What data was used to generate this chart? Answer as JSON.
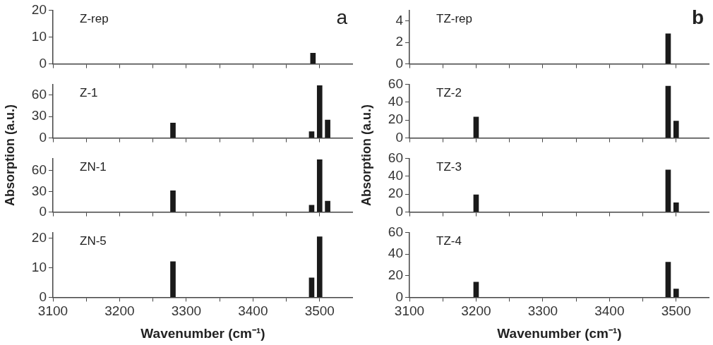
{
  "chart_data": [
    {
      "type": "bar",
      "title": "Z-rep",
      "annotations": [
        "a"
      ],
      "ylabel": "Absorption (a.u.)",
      "x": [
        3490
      ],
      "values": [
        4
      ],
      "color": "#1a1a1a",
      "xlim": [
        3100,
        3550
      ],
      "xticks": [
        3100,
        {
          "value": 3150,
          "label": null
        },
        3200,
        {
          "value": 3250,
          "label": null
        },
        3300,
        {
          "value": 3350,
          "label": null
        },
        3400,
        {
          "value": 3450,
          "label": null
        },
        3500
      ],
      "ylim": [
        0,
        20
      ],
      "yticks": [
        0,
        10,
        20
      ],
      "tick_labels": "y",
      "grid": false,
      "legend": false
    },
    {
      "type": "bar",
      "title": "Z-1",
      "x": [
        3280,
        3488,
        3500,
        3512
      ],
      "values": [
        21,
        9,
        73,
        25
      ],
      "color": "#1a1a1a",
      "xlim": [
        3100,
        3550
      ],
      "xticks": [
        3100,
        {
          "value": 3150,
          "label": null
        },
        3200,
        {
          "value": 3250,
          "label": null
        },
        3300,
        {
          "value": 3350,
          "label": null
        },
        3400,
        {
          "value": 3450,
          "label": null
        },
        3500
      ],
      "ylim": [
        0,
        75
      ],
      "yticks": [
        0,
        30,
        60
      ],
      "tick_labels": "y",
      "grid": false,
      "legend": false
    },
    {
      "type": "bar",
      "title": "ZN-1",
      "x": [
        3280,
        3488,
        3500,
        3512
      ],
      "values": [
        31,
        10,
        76,
        16
      ],
      "color": "#1a1a1a",
      "xlim": [
        3100,
        3550
      ],
      "xticks": [
        3100,
        {
          "value": 3150,
          "label": null
        },
        3200,
        {
          "value": 3250,
          "label": null
        },
        3300,
        {
          "value": 3350,
          "label": null
        },
        3400,
        {
          "value": 3450,
          "label": null
        },
        3500
      ],
      "ylim": [
        0,
        78
      ],
      "yticks": [
        0,
        30,
        60
      ],
      "tick_labels": "y",
      "grid": false,
      "legend": false
    },
    {
      "type": "bar",
      "title": "ZN-5",
      "xlabel": "Wavenumber (cm⁻¹)",
      "x": [
        3280,
        3488,
        3500
      ],
      "values": [
        12.1,
        6.6,
        20.5
      ],
      "color": "#1a1a1a",
      "xlim": [
        3100,
        3550
      ],
      "xticks": [
        3100,
        {
          "value": 3150,
          "label": null
        },
        3200,
        {
          "value": 3250,
          "label": null
        },
        3300,
        {
          "value": 3350,
          "label": null
        },
        3400,
        {
          "value": 3450,
          "label": null
        },
        3500
      ],
      "ylim": [
        0,
        22
      ],
      "yticks": [
        0,
        10,
        20
      ],
      "grid": false,
      "legend": false
    },
    {
      "type": "bar",
      "title": "TZ-rep",
      "annotations": [
        "b"
      ],
      "ylabel": "Absorption (a.u.)",
      "x": [
        3488
      ],
      "values": [
        2.8
      ],
      "color": "#1a1a1a",
      "xlim": [
        3100,
        3550
      ],
      "xticks": [
        3100,
        {
          "value": 3150,
          "label": null
        },
        3200,
        {
          "value": 3250,
          "label": null
        },
        3300,
        {
          "value": 3350,
          "label": null
        },
        3400,
        {
          "value": 3450,
          "label": null
        },
        3500
      ],
      "ylim": [
        0,
        5
      ],
      "yticks": [
        0,
        2,
        4
      ],
      "tick_labels": "y",
      "grid": false,
      "legend": false
    },
    {
      "type": "bar",
      "title": "TZ-2",
      "x": [
        3200,
        3488,
        3500
      ],
      "values": [
        23.5,
        57.8,
        18.9
      ],
      "color": "#1a1a1a",
      "xlim": [
        3100,
        3550
      ],
      "xticks": [
        3100,
        {
          "value": 3150,
          "label": null
        },
        3200,
        {
          "value": 3250,
          "label": null
        },
        3300,
        {
          "value": 3350,
          "label": null
        },
        3400,
        {
          "value": 3450,
          "label": null
        },
        3500
      ],
      "ylim": [
        0,
        60
      ],
      "yticks": [
        0,
        20,
        40,
        60
      ],
      "tick_labels": "y",
      "grid": false,
      "legend": false
    },
    {
      "type": "bar",
      "title": "TZ-3",
      "x": [
        3200,
        3488,
        3500
      ],
      "values": [
        19.4,
        47,
        10.5
      ],
      "color": "#1a1a1a",
      "xlim": [
        3100,
        3550
      ],
      "xticks": [
        3100,
        {
          "value": 3150,
          "label": null
        },
        3200,
        {
          "value": 3250,
          "label": null
        },
        3300,
        {
          "value": 3350,
          "label": null
        },
        3400,
        {
          "value": 3450,
          "label": null
        },
        3500
      ],
      "ylim": [
        0,
        60
      ],
      "yticks": [
        0,
        20,
        40,
        60
      ],
      "tick_labels": "y",
      "grid": false,
      "legend": false
    },
    {
      "type": "bar",
      "title": "TZ-4",
      "xlabel": "Wavenumber (cm⁻¹)",
      "x": [
        3200,
        3488,
        3500
      ],
      "values": [
        14,
        32.5,
        7.7
      ],
      "color": "#1a1a1a",
      "xlim": [
        3100,
        3550
      ],
      "xticks": [
        3100,
        {
          "value": 3150,
          "label": null
        },
        3200,
        {
          "value": 3250,
          "label": null
        },
        3300,
        {
          "value": 3350,
          "label": null
        },
        3400,
        {
          "value": 3450,
          "label": null
        },
        3500
      ],
      "ylim": [
        0,
        60
      ],
      "yticks": [
        0,
        20,
        40,
        60
      ],
      "grid": false,
      "legend": false
    }
  ]
}
